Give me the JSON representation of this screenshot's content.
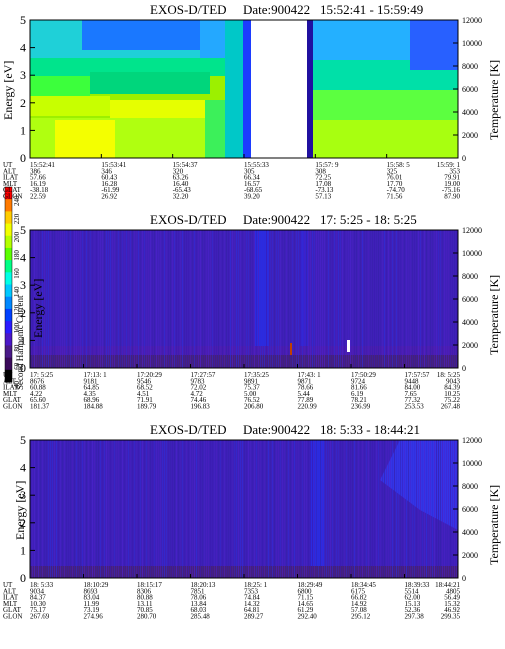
{
  "colorbar": {
    "label": "Second Harmonic Current",
    "ticks": [
      "240",
      "220",
      "200",
      "180",
      "160",
      "140",
      "120",
      "100",
      "80",
      "60",
      "40"
    ],
    "colors": [
      "#ff0000",
      "#ff7a00",
      "#ffcc00",
      "#f2ff00",
      "#b4ff00",
      "#5cff00",
      "#00ff86",
      "#00ffe6",
      "#00c8ff",
      "#0088ff",
      "#0040ff",
      "#2b1bff",
      "#4b18c8",
      "#4a1a88",
      "#3a0a5a",
      "#000000"
    ]
  },
  "chart_data": [
    {
      "type": "heatmap",
      "title": "EXOS-D/TED",
      "date_label": "Date:900422",
      "time_range": "15:52:41 - 15:59:49",
      "ylabel": "Energy [eV]",
      "y2label": "Temperature [K]",
      "ylim": [
        0,
        5
      ],
      "yticks": [
        "0",
        "1",
        "2",
        "3",
        "4",
        "5"
      ],
      "y2ticks": [
        "0",
        "2000",
        "4000",
        "6000",
        "8000",
        "10000",
        "12000"
      ],
      "ephemeris_labels": [
        "UT",
        "ALT",
        "ILAT",
        "MLT",
        "GLAT",
        "GLON"
      ],
      "ephemeris_columns": [
        {
          "UT": "15:52:41",
          "ALT": "386",
          "ILAT": "57.66",
          "MLT": "16.19",
          "GLAT": "-38.18",
          "GLON": "22.59"
        },
        {
          "UT": "15:53:41",
          "ALT": "346",
          "ILAT": "60.43",
          "MLT": "16.28",
          "GLAT": "-61.99",
          "GLON": "26.92"
        },
        {
          "UT": "15:54:37",
          "ALT": "320",
          "ILAT": "63.26",
          "MLT": "16.40",
          "GLAT": "-65.43",
          "GLON": "32.20"
        },
        {
          "UT": "15:55:33",
          "ALT": "305",
          "ILAT": "66.34",
          "MLT": "16.57",
          "GLAT": "-68.65",
          "GLON": "39.20"
        },
        {
          "UT": "15:57: 9",
          "ALT": "308",
          "ILAT": "72.25",
          "MLT": "17.08",
          "GLAT": "-73.13",
          "GLON": "57.13"
        },
        {
          "UT": "15:58: 5",
          "ALT": "325",
          "ILAT": "76.01",
          "MLT": "17.70",
          "GLAT": "-74.70",
          "GLON": "71.56"
        },
        {
          "UT": "15:59: 1",
          "ALT": "353",
          "ILAT": "79.91",
          "MLT": "19.00",
          "GLAT": "-75.16",
          "GLON": "87.90"
        }
      ]
    },
    {
      "type": "heatmap",
      "title": "EXOS-D/TED",
      "date_label": "Date:900422",
      "time_range": "17: 5:25 - 18: 5:25",
      "ylabel": "Energy [eV]",
      "y2label": "Temperature [K]",
      "ylim": [
        0,
        5
      ],
      "yticks": [
        "0",
        "1",
        "2",
        "3",
        "4",
        "5"
      ],
      "y2ticks": [
        "0",
        "2000",
        "4000",
        "6000",
        "8000",
        "10000",
        "12000"
      ],
      "ephemeris_labels": [
        "UT",
        "ALT",
        "ILAT",
        "MLT",
        "GLAT",
        "GLON"
      ],
      "ephemeris_columns": [
        {
          "UT": "17: 5:25",
          "ALT": "8676",
          "ILAT": "60.88",
          "MLT": "4.22",
          "GLAT": "65.60",
          "GLON": "181.37"
        },
        {
          "UT": "17:13: 1",
          "ALT": "9181",
          "ILAT": "64.85",
          "MLT": "4.35",
          "GLAT": "68.96",
          "GLON": "184.88"
        },
        {
          "UT": "17:20:29",
          "ALT": "9546",
          "ILAT": "68.52",
          "MLT": "4.51",
          "GLAT": "71.91",
          "GLON": "189.79"
        },
        {
          "UT": "17:27:57",
          "ALT": "9783",
          "ILAT": "72.02",
          "MLT": "4.72",
          "GLAT": "74.46",
          "GLON": "196.83"
        },
        {
          "UT": "17:35:25",
          "ALT": "9891",
          "ILAT": "75.37",
          "MLT": "5.00",
          "GLAT": "76.52",
          "GLON": "206.80"
        },
        {
          "UT": "17:43: 1",
          "ALT": "9871",
          "ILAT": "78.66",
          "MLT": "5.44",
          "GLAT": "77.89",
          "GLON": "220.99"
        },
        {
          "UT": "17:50:29",
          "ALT": "9724",
          "ILAT": "81.66",
          "MLT": "6.19",
          "GLAT": "78.21",
          "GLON": "236.99"
        },
        {
          "UT": "17:57:57",
          "ALT": "9448",
          "ILAT": "84.00",
          "MLT": "7.65",
          "GLAT": "77.32",
          "GLON": "253.53"
        },
        {
          "UT": "18: 5:25",
          "ALT": "9043",
          "ILAT": "84.39",
          "MLT": "10.25",
          "GLAT": "75.22",
          "GLON": "267.48"
        }
      ]
    },
    {
      "type": "heatmap",
      "title": "EXOS-D/TED",
      "date_label": "Date:900422",
      "time_range": "18: 5:33 - 18:44:21",
      "ylabel": "Energy [eV]",
      "y2label": "Temperature [K]",
      "ylim": [
        0,
        5
      ],
      "yticks": [
        "0",
        "1",
        "2",
        "3",
        "4",
        "5"
      ],
      "y2ticks": [
        "0",
        "2000",
        "4000",
        "6000",
        "8000",
        "10000",
        "12000"
      ],
      "ephemeris_labels": [
        "UT",
        "ALT",
        "ILAT",
        "MLT",
        "GLAT",
        "GLON"
      ],
      "ephemeris_columns": [
        {
          "UT": "18: 5:33",
          "ALT": "9034",
          "ILAT": "84.37",
          "MLT": "10.30",
          "GLAT": "75.17",
          "GLON": "267.69"
        },
        {
          "UT": "18:10:29",
          "ALT": "8693",
          "ILAT": "83.04",
          "MLT": "11.99",
          "GLAT": "73.19",
          "GLON": "274.96"
        },
        {
          "UT": "18:15:17",
          "ALT": "8306",
          "ILAT": "80.88",
          "MLT": "13.11",
          "GLAT": "70.85",
          "GLON": "280.70"
        },
        {
          "UT": "18:20:13",
          "ALT": "7851",
          "ILAT": "78.06",
          "MLT": "13.84",
          "GLAT": "68.03",
          "GLON": "285.48"
        },
        {
          "UT": "18:25: 1",
          "ALT": "7353",
          "ILAT": "74.84",
          "MLT": "14.32",
          "GLAT": "64.81",
          "GLON": "289.27"
        },
        {
          "UT": "18:29:49",
          "ALT": "6800",
          "ILAT": "71.15",
          "MLT": "14.65",
          "GLAT": "61.29",
          "GLON": "292.40"
        },
        {
          "UT": "18:34:45",
          "ALT": "6175",
          "ILAT": "66.82",
          "MLT": "14.92",
          "GLAT": "57.08",
          "GLON": "295.12"
        },
        {
          "UT": "18:39:33",
          "ALT": "5514",
          "ILAT": "62.00",
          "MLT": "15.13",
          "GLAT": "52.36",
          "GLON": "297.38"
        },
        {
          "UT": "18:44:21",
          "ALT": "4805",
          "ILAT": "56.49",
          "MLT": "15.32",
          "GLAT": "46.92",
          "GLON": "299.35"
        }
      ]
    }
  ]
}
